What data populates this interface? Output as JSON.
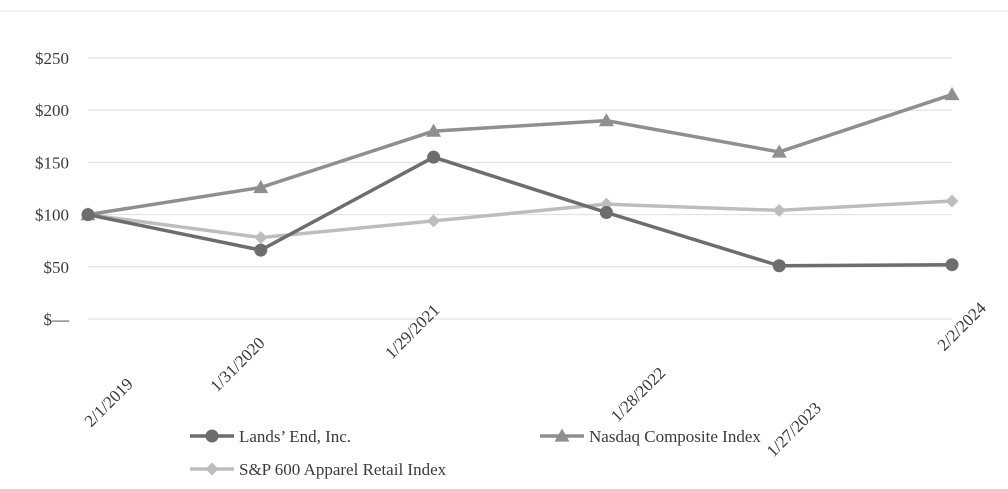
{
  "chart_data": {
    "type": "line",
    "categories": [
      "2/1/2019",
      "1/31/2020",
      "1/29/2021",
      "1/28/2022",
      "1/27/2023",
      "2/2/2024"
    ],
    "y_tick_labels": [
      "$—",
      "$50",
      "$100",
      "$150",
      "$200",
      "$250"
    ],
    "y_ticks": [
      0,
      50,
      100,
      150,
      200,
      250
    ],
    "ylim": [
      0,
      250
    ],
    "grid": true,
    "legend_position": "bottom",
    "series": [
      {
        "name": "Lands’ End, Inc.",
        "marker": "circle",
        "color": "#6d6d6d",
        "values": [
          100,
          66,
          155,
          102,
          51,
          52
        ]
      },
      {
        "name": "Nasdaq Composite Index",
        "marker": "triangle",
        "color": "#8f8f8f",
        "values": [
          100,
          126,
          180,
          190,
          160,
          215
        ]
      },
      {
        "name": "S&P 600 Apparel Retail Index",
        "marker": "diamond",
        "color": "#bdbdbd",
        "values": [
          100,
          78,
          94,
          110,
          104,
          113
        ]
      }
    ]
  }
}
